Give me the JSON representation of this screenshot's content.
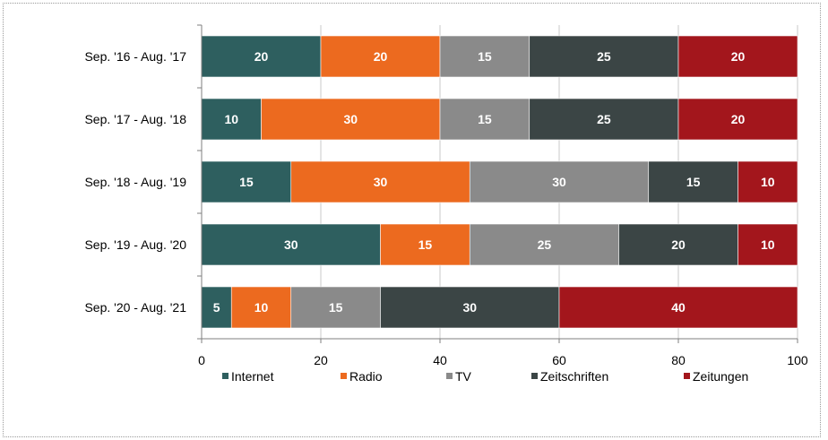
{
  "chart_data": {
    "type": "bar",
    "orientation": "horizontal",
    "stacked": true,
    "categories": [
      "Sep. '16 - Aug. '17",
      "Sep. '17 - Aug. '18",
      "Sep. '18 - Aug. '19",
      "Sep. '19 - Aug. '20",
      "Sep. '20 - Aug. '21"
    ],
    "series": [
      {
        "name": "Internet",
        "color": "#2e5f5f",
        "values": [
          20,
          10,
          15,
          30,
          5
        ]
      },
      {
        "name": "Radio",
        "color": "#ec6a1f",
        "values": [
          20,
          30,
          30,
          15,
          10
        ]
      },
      {
        "name": "TV",
        "color": "#8a8a8a",
        "values": [
          15,
          15,
          30,
          25,
          15
        ]
      },
      {
        "name": "Zeitschriften",
        "color": "#3b4545",
        "values": [
          25,
          25,
          15,
          20,
          30
        ]
      },
      {
        "name": "Zeitungen",
        "color": "#a3161c",
        "values": [
          20,
          20,
          10,
          10,
          40
        ]
      }
    ],
    "xlim": [
      0,
      100
    ],
    "xticks": [
      0,
      20,
      40,
      60,
      80,
      100
    ],
    "grid": true,
    "data_labels": true,
    "legend_position": "bottom"
  }
}
